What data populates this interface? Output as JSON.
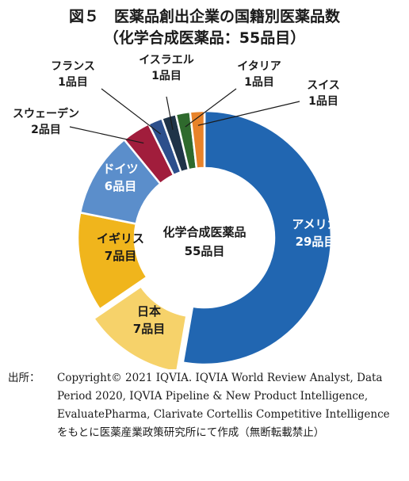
{
  "figure": {
    "title": "図５　医薬品創出企業の国籍別医薬品数",
    "subtitle": "（化学合成医薬品：55品目）"
  },
  "chart_data": {
    "type": "pie",
    "donut": true,
    "center_label": {
      "line1": "化学合成医薬品",
      "line2": "55品目"
    },
    "slices": [
      {
        "name": "アメリカ",
        "value": 29,
        "value_label": "29品目",
        "color": "#2166b1",
        "exploded": false
      },
      {
        "name": "日本",
        "value": 7,
        "value_label": "7品目",
        "color": "#f6d26a",
        "exploded": true
      },
      {
        "name": "イギリス",
        "value": 7,
        "value_label": "7品目",
        "color": "#f0b51c",
        "exploded": false
      },
      {
        "name": "ドイツ",
        "value": 6,
        "value_label": "6品目",
        "color": "#5b8ecb",
        "exploded": false
      },
      {
        "name": "スウェーデン",
        "value": 2,
        "value_label": "2品目",
        "color": "#a11d3c",
        "exploded": false
      },
      {
        "name": "フランス",
        "value": 1,
        "value_label": "1品目",
        "color": "#2c4f8c",
        "exploded": false
      },
      {
        "name": "イスラエル",
        "value": 1,
        "value_label": "1品目",
        "color": "#1f3348",
        "exploded": false
      },
      {
        "name": "イタリア",
        "value": 1,
        "value_label": "1品目",
        "color": "#2f6a2d",
        "exploded": false
      },
      {
        "name": "スイス",
        "value": 1,
        "value_label": "1品目",
        "color": "#e8832a",
        "exploded": false
      }
    ]
  },
  "source": {
    "label": "出所：",
    "text": "Copyright© 2021 IQVIA. IQVIA World Review Analyst, Data Period 2020, IQVIA Pipeline & New Product Intelligence, EvaluatePharma, Clarivate Cortellis Competitive Intelligence をもとに医薬産業政策研究所にて作成（無断転載禁止）"
  }
}
